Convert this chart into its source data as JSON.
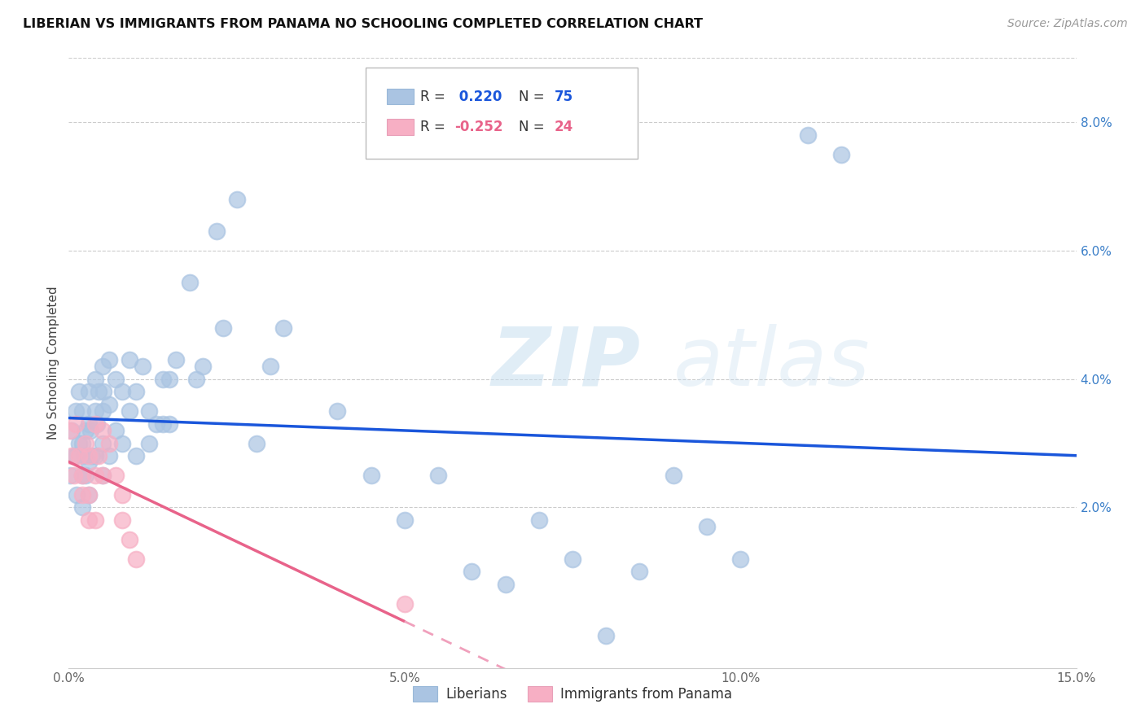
{
  "title": "LIBERIAN VS IMMIGRANTS FROM PANAMA NO SCHOOLING COMPLETED CORRELATION CHART",
  "source": "Source: ZipAtlas.com",
  "ylabel": "No Schooling Completed",
  "xlim": [
    0.0,
    0.15
  ],
  "ylim": [
    -0.005,
    0.09
  ],
  "xticks": [
    0.0,
    0.05,
    0.1,
    0.15
  ],
  "xticklabels": [
    "0.0%",
    "",
    "10.0%",
    "15.0%"
  ],
  "yticks": [
    0.0,
    0.02,
    0.04,
    0.06,
    0.08
  ],
  "yticklabels": [
    "",
    "2.0%",
    "4.0%",
    "6.0%",
    "8.0%"
  ],
  "liberian_color": "#aac4e2",
  "panama_color": "#f7afc4",
  "trendline_liberian_color": "#1a56db",
  "trendline_panama_solid_color": "#e8638a",
  "trendline_panama_dash_color": "#f0a0bc",
  "legend_label_liberian": "Liberians",
  "legend_label_panama": "Immigrants from Panama",
  "watermark_zip": "ZIP",
  "watermark_atlas": "atlas",
  "liberian_x": [
    0.0002,
    0.0005,
    0.0008,
    0.001,
    0.001,
    0.0012,
    0.0015,
    0.0015,
    0.002,
    0.002,
    0.002,
    0.002,
    0.0022,
    0.0025,
    0.0025,
    0.003,
    0.003,
    0.003,
    0.003,
    0.0032,
    0.0035,
    0.004,
    0.004,
    0.004,
    0.0042,
    0.0045,
    0.005,
    0.005,
    0.005,
    0.005,
    0.0052,
    0.006,
    0.006,
    0.006,
    0.007,
    0.007,
    0.008,
    0.008,
    0.009,
    0.009,
    0.01,
    0.01,
    0.011,
    0.012,
    0.012,
    0.013,
    0.014,
    0.014,
    0.015,
    0.015,
    0.016,
    0.018,
    0.019,
    0.02,
    0.022,
    0.023,
    0.025,
    0.028,
    0.03,
    0.032,
    0.04,
    0.045,
    0.05,
    0.055,
    0.06,
    0.065,
    0.07,
    0.075,
    0.08,
    0.085,
    0.09,
    0.095,
    0.1,
    0.11,
    0.115
  ],
  "liberian_y": [
    0.025,
    0.032,
    0.028,
    0.035,
    0.028,
    0.022,
    0.038,
    0.03,
    0.035,
    0.03,
    0.025,
    0.02,
    0.028,
    0.032,
    0.025,
    0.038,
    0.033,
    0.027,
    0.022,
    0.032,
    0.028,
    0.04,
    0.035,
    0.028,
    0.033,
    0.038,
    0.042,
    0.035,
    0.03,
    0.025,
    0.038,
    0.043,
    0.036,
    0.028,
    0.04,
    0.032,
    0.038,
    0.03,
    0.043,
    0.035,
    0.038,
    0.028,
    0.042,
    0.035,
    0.03,
    0.033,
    0.04,
    0.033,
    0.04,
    0.033,
    0.043,
    0.055,
    0.04,
    0.042,
    0.063,
    0.048,
    0.068,
    0.03,
    0.042,
    0.048,
    0.035,
    0.025,
    0.018,
    0.025,
    0.01,
    0.008,
    0.018,
    0.012,
    0.0,
    0.01,
    0.025,
    0.017,
    0.012,
    0.078,
    0.075
  ],
  "panama_x": [
    0.0002,
    0.0005,
    0.0008,
    0.001,
    0.0015,
    0.002,
    0.002,
    0.0025,
    0.003,
    0.003,
    0.003,
    0.004,
    0.004,
    0.004,
    0.0045,
    0.005,
    0.005,
    0.006,
    0.007,
    0.008,
    0.008,
    0.009,
    0.01,
    0.05
  ],
  "panama_y": [
    0.032,
    0.028,
    0.025,
    0.033,
    0.028,
    0.025,
    0.022,
    0.03,
    0.028,
    0.022,
    0.018,
    0.033,
    0.025,
    0.018,
    0.028,
    0.032,
    0.025,
    0.03,
    0.025,
    0.022,
    0.018,
    0.015,
    0.012,
    0.005
  ],
  "trendline_lib_x0": 0.0,
  "trendline_lib_x1": 0.15,
  "trendline_pan_solid_x0": 0.0,
  "trendline_pan_solid_x1": 0.05,
  "trendline_pan_dash_x0": 0.05,
  "trendline_pan_dash_x1": 0.15
}
